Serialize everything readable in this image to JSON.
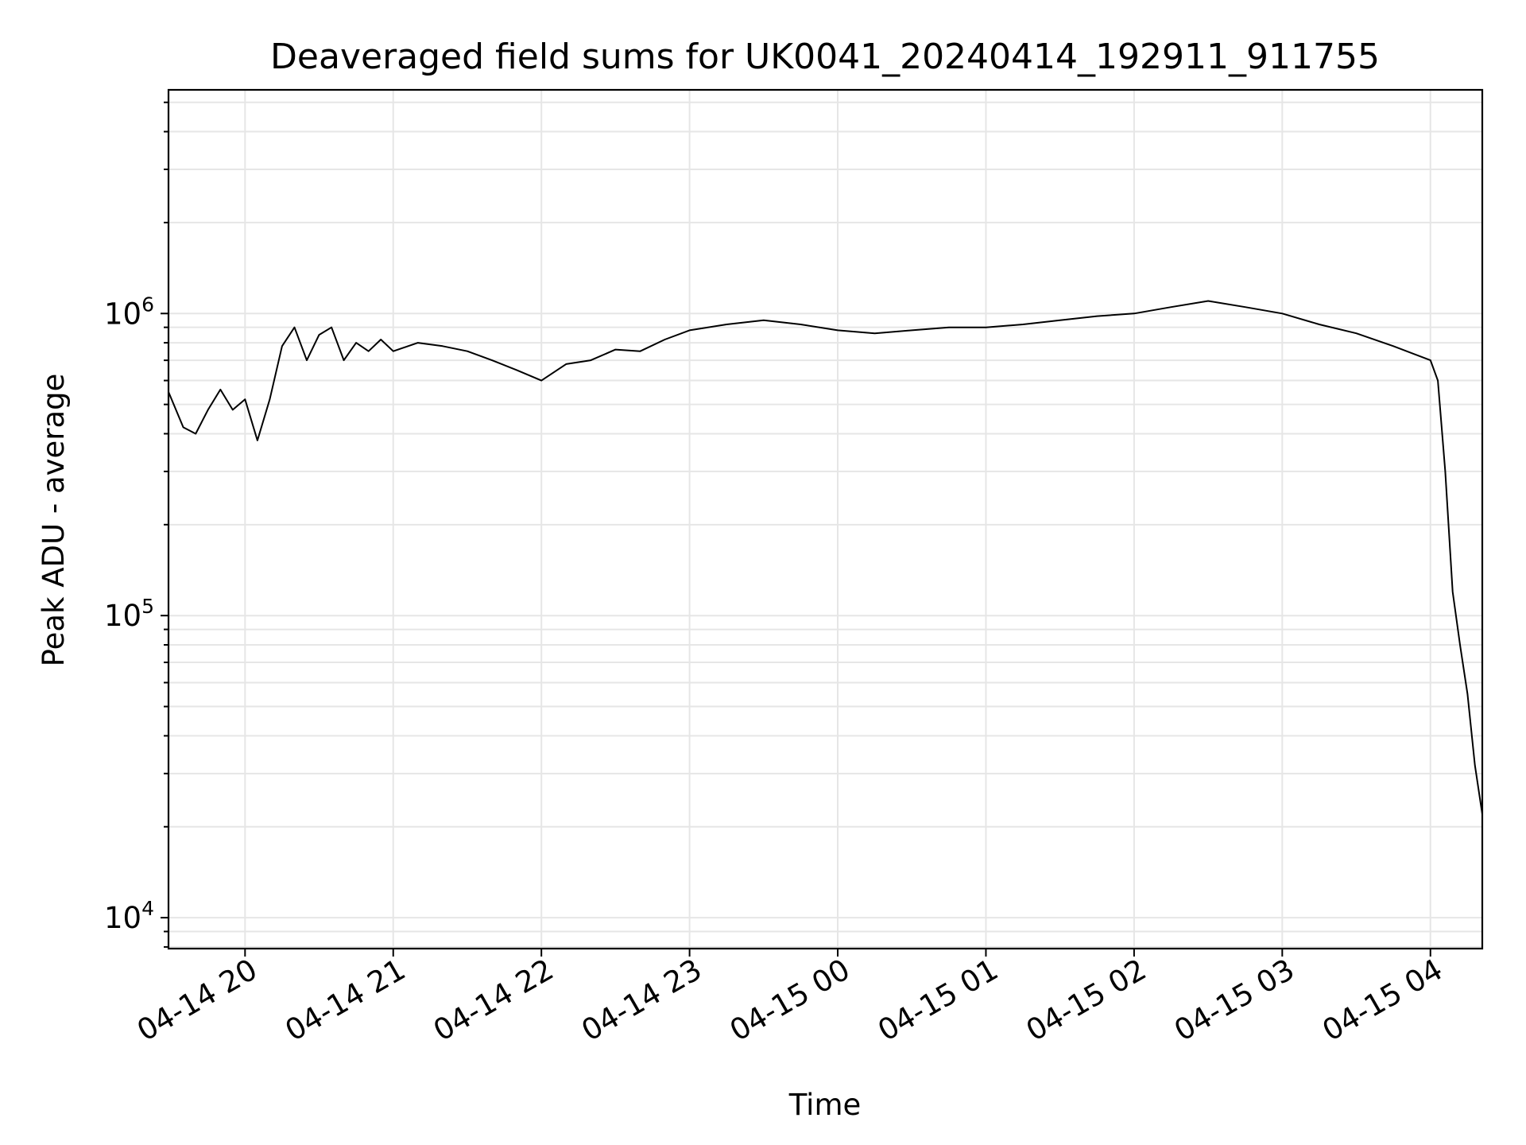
{
  "chart_data": {
    "type": "line",
    "title": "Deaveraged field sums for UK0041_20240414_192911_911755",
    "xlabel": "Time",
    "ylabel": "Peak ADU - average",
    "yscale": "log",
    "grid": true,
    "line_color": "#000000",
    "grid_color": "#e6e6e6",
    "x_range": [
      "2024-04-14 19:29",
      "2024-04-15 04:21"
    ],
    "ylim": [
      7900,
      5500000
    ],
    "xticks": [
      {
        "t": "2024-04-14 20:00",
        "label": "04-14 20"
      },
      {
        "t": "2024-04-14 21:00",
        "label": "04-14 21"
      },
      {
        "t": "2024-04-14 22:00",
        "label": "04-14 22"
      },
      {
        "t": "2024-04-14 23:00",
        "label": "04-14 23"
      },
      {
        "t": "2024-04-15 00:00",
        "label": "04-15 00"
      },
      {
        "t": "2024-04-15 01:00",
        "label": "04-15 01"
      },
      {
        "t": "2024-04-15 02:00",
        "label": "04-15 02"
      },
      {
        "t": "2024-04-15 03:00",
        "label": "04-15 03"
      },
      {
        "t": "2024-04-15 04:00",
        "label": "04-15 04"
      }
    ],
    "yticks": [
      {
        "value": 10000,
        "base": "10",
        "exp": "4"
      },
      {
        "value": 100000,
        "base": "10",
        "exp": "5"
      },
      {
        "value": 1000000,
        "base": "10",
        "exp": "6"
      }
    ],
    "series": [
      {
        "points": [
          [
            "2024-04-14 19:29",
            550000
          ],
          [
            "2024-04-14 19:35",
            420000
          ],
          [
            "2024-04-14 19:40",
            400000
          ],
          [
            "2024-04-14 19:45",
            480000
          ],
          [
            "2024-04-14 19:50",
            560000
          ],
          [
            "2024-04-14 19:55",
            480000
          ],
          [
            "2024-04-14 20:00",
            520000
          ],
          [
            "2024-04-14 20:05",
            380000
          ],
          [
            "2024-04-14 20:10",
            520000
          ],
          [
            "2024-04-14 20:15",
            780000
          ],
          [
            "2024-04-14 20:20",
            900000
          ],
          [
            "2024-04-14 20:25",
            700000
          ],
          [
            "2024-04-14 20:30",
            850000
          ],
          [
            "2024-04-14 20:35",
            900000
          ],
          [
            "2024-04-14 20:40",
            700000
          ],
          [
            "2024-04-14 20:45",
            800000
          ],
          [
            "2024-04-14 20:50",
            750000
          ],
          [
            "2024-04-14 20:55",
            820000
          ],
          [
            "2024-04-14 21:00",
            750000
          ],
          [
            "2024-04-14 21:10",
            800000
          ],
          [
            "2024-04-14 21:20",
            780000
          ],
          [
            "2024-04-14 21:30",
            750000
          ],
          [
            "2024-04-14 21:40",
            700000
          ],
          [
            "2024-04-14 21:50",
            650000
          ],
          [
            "2024-04-14 22:00",
            600000
          ],
          [
            "2024-04-14 22:10",
            680000
          ],
          [
            "2024-04-14 22:20",
            700000
          ],
          [
            "2024-04-14 22:30",
            760000
          ],
          [
            "2024-04-14 22:40",
            750000
          ],
          [
            "2024-04-14 22:50",
            820000
          ],
          [
            "2024-04-14 23:00",
            880000
          ],
          [
            "2024-04-14 23:15",
            920000
          ],
          [
            "2024-04-14 23:30",
            950000
          ],
          [
            "2024-04-14 23:45",
            920000
          ],
          [
            "2024-04-15 00:00",
            880000
          ],
          [
            "2024-04-15 00:15",
            860000
          ],
          [
            "2024-04-15 00:30",
            880000
          ],
          [
            "2024-04-15 00:45",
            900000
          ],
          [
            "2024-04-15 01:00",
            900000
          ],
          [
            "2024-04-15 01:15",
            920000
          ],
          [
            "2024-04-15 01:30",
            950000
          ],
          [
            "2024-04-15 01:45",
            980000
          ],
          [
            "2024-04-15 02:00",
            1000000
          ],
          [
            "2024-04-15 02:15",
            1050000
          ],
          [
            "2024-04-15 02:30",
            1100000
          ],
          [
            "2024-04-15 02:45",
            1050000
          ],
          [
            "2024-04-15 03:00",
            1000000
          ],
          [
            "2024-04-15 03:15",
            920000
          ],
          [
            "2024-04-15 03:30",
            860000
          ],
          [
            "2024-04-15 03:45",
            780000
          ],
          [
            "2024-04-15 04:00",
            700000
          ],
          [
            "2024-04-15 04:03",
            600000
          ],
          [
            "2024-04-15 04:06",
            300000
          ],
          [
            "2024-04-15 04:09",
            120000
          ],
          [
            "2024-04-15 04:12",
            80000
          ],
          [
            "2024-04-15 04:15",
            55000
          ],
          [
            "2024-04-15 04:18",
            32000
          ],
          [
            "2024-04-15 04:21",
            22000
          ]
        ]
      }
    ]
  }
}
